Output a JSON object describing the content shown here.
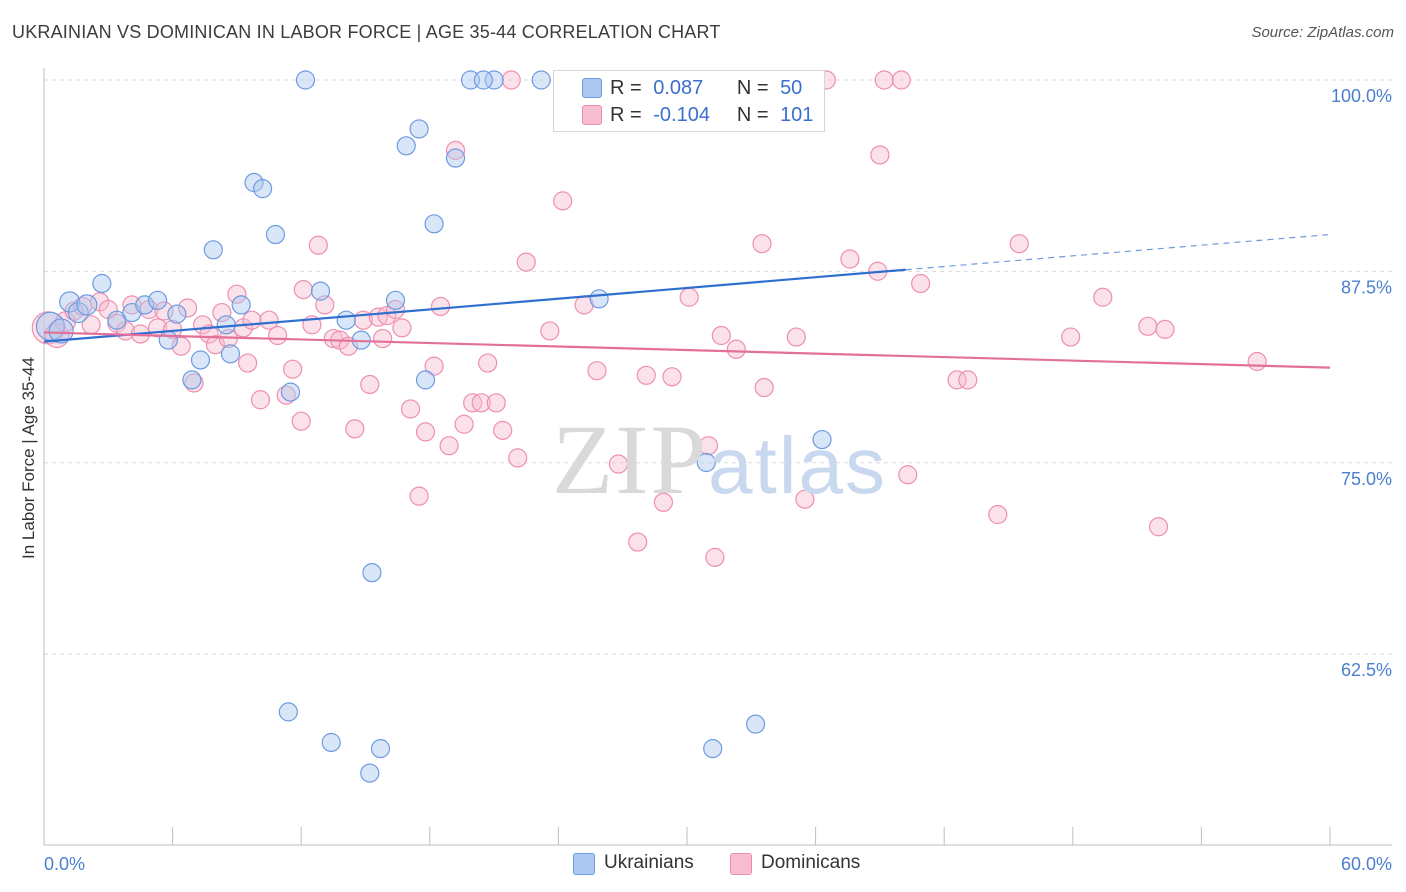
{
  "title": "UKRAINIAN VS DOMINICAN IN LABOR FORCE | AGE 35-44 CORRELATION CHART",
  "source": "Source: ZipAtlas.com",
  "watermark": {
    "part1": "ZIP",
    "part2": "atlas"
  },
  "legend": {
    "r_label": "R =",
    "n_label": "N =",
    "rows": [
      {
        "r": "0.087",
        "n": "50",
        "color": "#aac8f0",
        "border": "#6d9be0"
      },
      {
        "r": "-0.104",
        "n": "101",
        "color": "#f7bcd0",
        "border": "#ee8fb0"
      }
    ]
  },
  "bottom_legend": [
    {
      "label": "Ukrainians",
      "color": "#aac8f0",
      "border": "#6d9be0"
    },
    {
      "label": "Dominicans",
      "color": "#f7bcd0",
      "border": "#ee8fb0"
    }
  ],
  "chart_data": {
    "type": "scatter",
    "title": "UKRAINIAN VS DOMINICAN IN LABOR FORCE | AGE 35-44 CORRELATION CHART",
    "xlabel": "",
    "ylabel": "In Labor Force | Age 35-44",
    "xlim": [
      0,
      60
    ],
    "ylim": [
      50,
      100
    ],
    "x_tick_labels": [
      "0.0%",
      "60.0%"
    ],
    "y_ticks": [
      62.5,
      75,
      87.5,
      100
    ],
    "y_tick_labels": [
      "62.5%",
      "75.0%",
      "87.5%",
      "100.0%"
    ],
    "grid": true,
    "legend_position": "top-center",
    "series": [
      {
        "name": "Ukrainians",
        "color": "#6d9be0",
        "fill": "#aac8f0",
        "trend": {
          "x0": 0,
          "y0": 82.9,
          "x1": 40.2,
          "y1": 87.6,
          "dashed_to_x": 60,
          "dashed_to_y": 89.9,
          "color": "#2f6fd0"
        },
        "points": [
          [
            0.3,
            83.9,
            14
          ],
          [
            0.8,
            83.6,
            12
          ],
          [
            1.2,
            85.5,
            10
          ],
          [
            1.6,
            84.8,
            10
          ],
          [
            2.0,
            85.3,
            10
          ],
          [
            2.7,
            86.7,
            9
          ],
          [
            3.4,
            84.3,
            9
          ],
          [
            4.1,
            84.8,
            9
          ],
          [
            4.7,
            85.3,
            9
          ],
          [
            5.3,
            85.6,
            9
          ],
          [
            5.8,
            83.0,
            9
          ],
          [
            6.2,
            84.7,
            9
          ],
          [
            6.9,
            80.4,
            9
          ],
          [
            7.3,
            81.7,
            9
          ],
          [
            7.9,
            88.9,
            9
          ],
          [
            8.5,
            84.0,
            9
          ],
          [
            8.7,
            82.1,
            9
          ],
          [
            9.2,
            85.3,
            9
          ],
          [
            9.8,
            93.3,
            9
          ],
          [
            10.2,
            92.9,
            9
          ],
          [
            10.8,
            89.9,
            9
          ],
          [
            11.4,
            58.7,
            9
          ],
          [
            11.5,
            79.6,
            9
          ],
          [
            12.2,
            100.0,
            9
          ],
          [
            12.9,
            86.2,
            9
          ],
          [
            13.4,
            56.7,
            9
          ],
          [
            14.1,
            84.3,
            9
          ],
          [
            14.8,
            83.0,
            9
          ],
          [
            15.2,
            54.7,
            9
          ],
          [
            15.3,
            67.8,
            9
          ],
          [
            15.7,
            56.3,
            9
          ],
          [
            16.4,
            85.6,
            9
          ],
          [
            16.9,
            95.7,
            9
          ],
          [
            17.5,
            96.8,
            9
          ],
          [
            17.8,
            80.4,
            9
          ],
          [
            18.2,
            90.6,
            9
          ],
          [
            19.2,
            94.9,
            9
          ],
          [
            19.9,
            100.0,
            9
          ],
          [
            21.0,
            100.0,
            9
          ],
          [
            23.2,
            100.0,
            9
          ],
          [
            25.9,
            85.7,
            9
          ],
          [
            28.9,
            100.0,
            9
          ],
          [
            30.1,
            100.0,
            9
          ],
          [
            30.9,
            75.0,
            9
          ],
          [
            31.2,
            56.3,
            9
          ],
          [
            33.0,
            100.0,
            9
          ],
          [
            33.2,
            57.9,
            9
          ],
          [
            35.0,
            100.0,
            9
          ],
          [
            36.3,
            76.5,
            9
          ],
          [
            20.5,
            100.0,
            9
          ]
        ]
      },
      {
        "name": "Dominicans",
        "color": "#ee8fb0",
        "fill": "#f7bcd0",
        "trend": {
          "x0": 0,
          "y0": 83.5,
          "x1": 60,
          "y1": 81.2,
          "color": "#e2709a"
        },
        "points": [
          [
            0.2,
            83.8,
            16
          ],
          [
            0.6,
            83.3,
            12
          ],
          [
            1.0,
            84.2,
            10
          ],
          [
            1.4,
            84.9,
            9
          ],
          [
            1.8,
            85.2,
            9
          ],
          [
            2.2,
            84.0,
            9
          ],
          [
            2.6,
            85.5,
            9
          ],
          [
            3.0,
            85.0,
            9
          ],
          [
            3.4,
            84.1,
            9
          ],
          [
            3.8,
            83.6,
            9
          ],
          [
            4.1,
            85.3,
            9
          ],
          [
            4.5,
            83.4,
            9
          ],
          [
            4.9,
            85.0,
            9
          ],
          [
            5.3,
            83.8,
            9
          ],
          [
            5.6,
            84.9,
            9
          ],
          [
            6.0,
            83.7,
            9
          ],
          [
            6.4,
            82.6,
            9
          ],
          [
            6.7,
            85.1,
            9
          ],
          [
            7.0,
            80.2,
            9
          ],
          [
            7.4,
            84.0,
            9
          ],
          [
            7.7,
            83.4,
            9
          ],
          [
            8.0,
            82.7,
            9
          ],
          [
            8.3,
            84.8,
            9
          ],
          [
            8.6,
            83.1,
            9
          ],
          [
            9.0,
            86.0,
            9
          ],
          [
            9.3,
            83.8,
            9
          ],
          [
            9.7,
            84.3,
            9
          ],
          [
            10.1,
            79.1,
            9
          ],
          [
            10.5,
            84.3,
            9
          ],
          [
            10.9,
            83.3,
            9
          ],
          [
            11.3,
            79.4,
            9
          ],
          [
            11.6,
            81.1,
            9
          ],
          [
            12.0,
            77.7,
            9
          ],
          [
            12.5,
            84.0,
            9
          ],
          [
            12.8,
            89.2,
            9
          ],
          [
            13.1,
            85.3,
            9
          ],
          [
            13.5,
            83.1,
            9
          ],
          [
            13.8,
            83.0,
            9
          ],
          [
            14.2,
            82.6,
            9
          ],
          [
            14.5,
            77.2,
            9
          ],
          [
            14.9,
            84.3,
            9
          ],
          [
            15.2,
            80.1,
            9
          ],
          [
            15.6,
            84.5,
            9
          ],
          [
            16.0,
            84.6,
            9
          ],
          [
            16.4,
            85.0,
            9
          ],
          [
            16.7,
            83.8,
            9
          ],
          [
            17.1,
            78.5,
            9
          ],
          [
            17.5,
            72.8,
            9
          ],
          [
            17.8,
            77.0,
            9
          ],
          [
            18.2,
            81.3,
            9
          ],
          [
            18.5,
            85.2,
            9
          ],
          [
            18.9,
            76.1,
            9
          ],
          [
            19.2,
            95.4,
            9
          ],
          [
            19.6,
            77.5,
            9
          ],
          [
            20.0,
            78.9,
            9
          ],
          [
            20.4,
            78.9,
            9
          ],
          [
            20.7,
            81.5,
            9
          ],
          [
            21.1,
            78.9,
            9
          ],
          [
            21.4,
            77.1,
            9
          ],
          [
            21.8,
            100.0,
            9
          ],
          [
            22.1,
            75.3,
            9
          ],
          [
            22.5,
            88.1,
            9
          ],
          [
            23.6,
            83.6,
            9
          ],
          [
            24.2,
            92.1,
            9
          ],
          [
            25.2,
            85.3,
            9
          ],
          [
            25.8,
            81.0,
            9
          ],
          [
            26.8,
            74.9,
            9
          ],
          [
            27.7,
            69.8,
            9
          ],
          [
            28.1,
            80.7,
            9
          ],
          [
            28.9,
            72.4,
            9
          ],
          [
            29.3,
            80.6,
            9
          ],
          [
            30.1,
            85.8,
            9
          ],
          [
            31.0,
            76.1,
            9
          ],
          [
            31.3,
            68.8,
            9
          ],
          [
            31.6,
            83.3,
            9
          ],
          [
            32.3,
            82.4,
            9
          ],
          [
            33.5,
            89.3,
            9
          ],
          [
            33.6,
            79.9,
            9
          ],
          [
            35.1,
            83.2,
            9
          ],
          [
            35.5,
            72.6,
            9
          ],
          [
            36.5,
            100.0,
            9
          ],
          [
            37.6,
            88.3,
            9
          ],
          [
            38.9,
            87.5,
            9
          ],
          [
            39.0,
            95.1,
            9
          ],
          [
            39.2,
            100.0,
            9
          ],
          [
            40.3,
            74.2,
            9
          ],
          [
            40.9,
            86.7,
            9
          ],
          [
            42.6,
            80.4,
            9
          ],
          [
            43.1,
            80.4,
            9
          ],
          [
            44.5,
            71.6,
            9
          ],
          [
            45.5,
            89.3,
            9
          ],
          [
            47.9,
            83.2,
            9
          ],
          [
            49.4,
            85.8,
            9
          ],
          [
            51.5,
            83.9,
            9
          ],
          [
            52.0,
            70.8,
            9
          ],
          [
            52.3,
            83.7,
            9
          ],
          [
            56.6,
            81.6,
            9
          ],
          [
            40.0,
            100.0,
            9
          ],
          [
            15.8,
            83.1,
            9
          ],
          [
            9.5,
            81.5,
            9
          ],
          [
            12.1,
            86.3,
            9
          ]
        ]
      }
    ]
  }
}
